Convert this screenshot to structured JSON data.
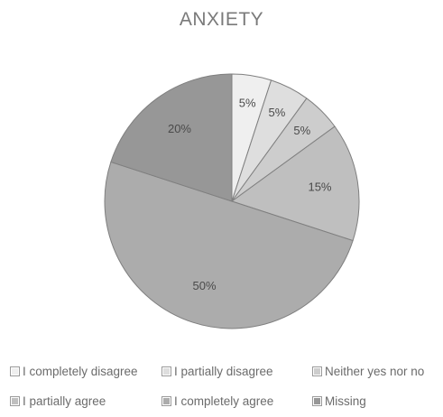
{
  "chart_data": {
    "type": "pie",
    "title": "ANXIETY",
    "categories": [
      "I completely disagree",
      "I partially disagree",
      "Neither yes nor no",
      "I partially agree",
      "I completely agree",
      "Missing"
    ],
    "values": [
      5,
      5,
      5,
      15,
      50,
      20
    ],
    "data_labels": [
      "5%",
      "5%",
      "5%",
      "15%",
      "50%",
      "20%"
    ],
    "colors": [
      "#efefef",
      "#dedede",
      "#cdcdcd",
      "#bfbfbf",
      "#acacac",
      "#979797"
    ],
    "legend_position": "bottom"
  }
}
